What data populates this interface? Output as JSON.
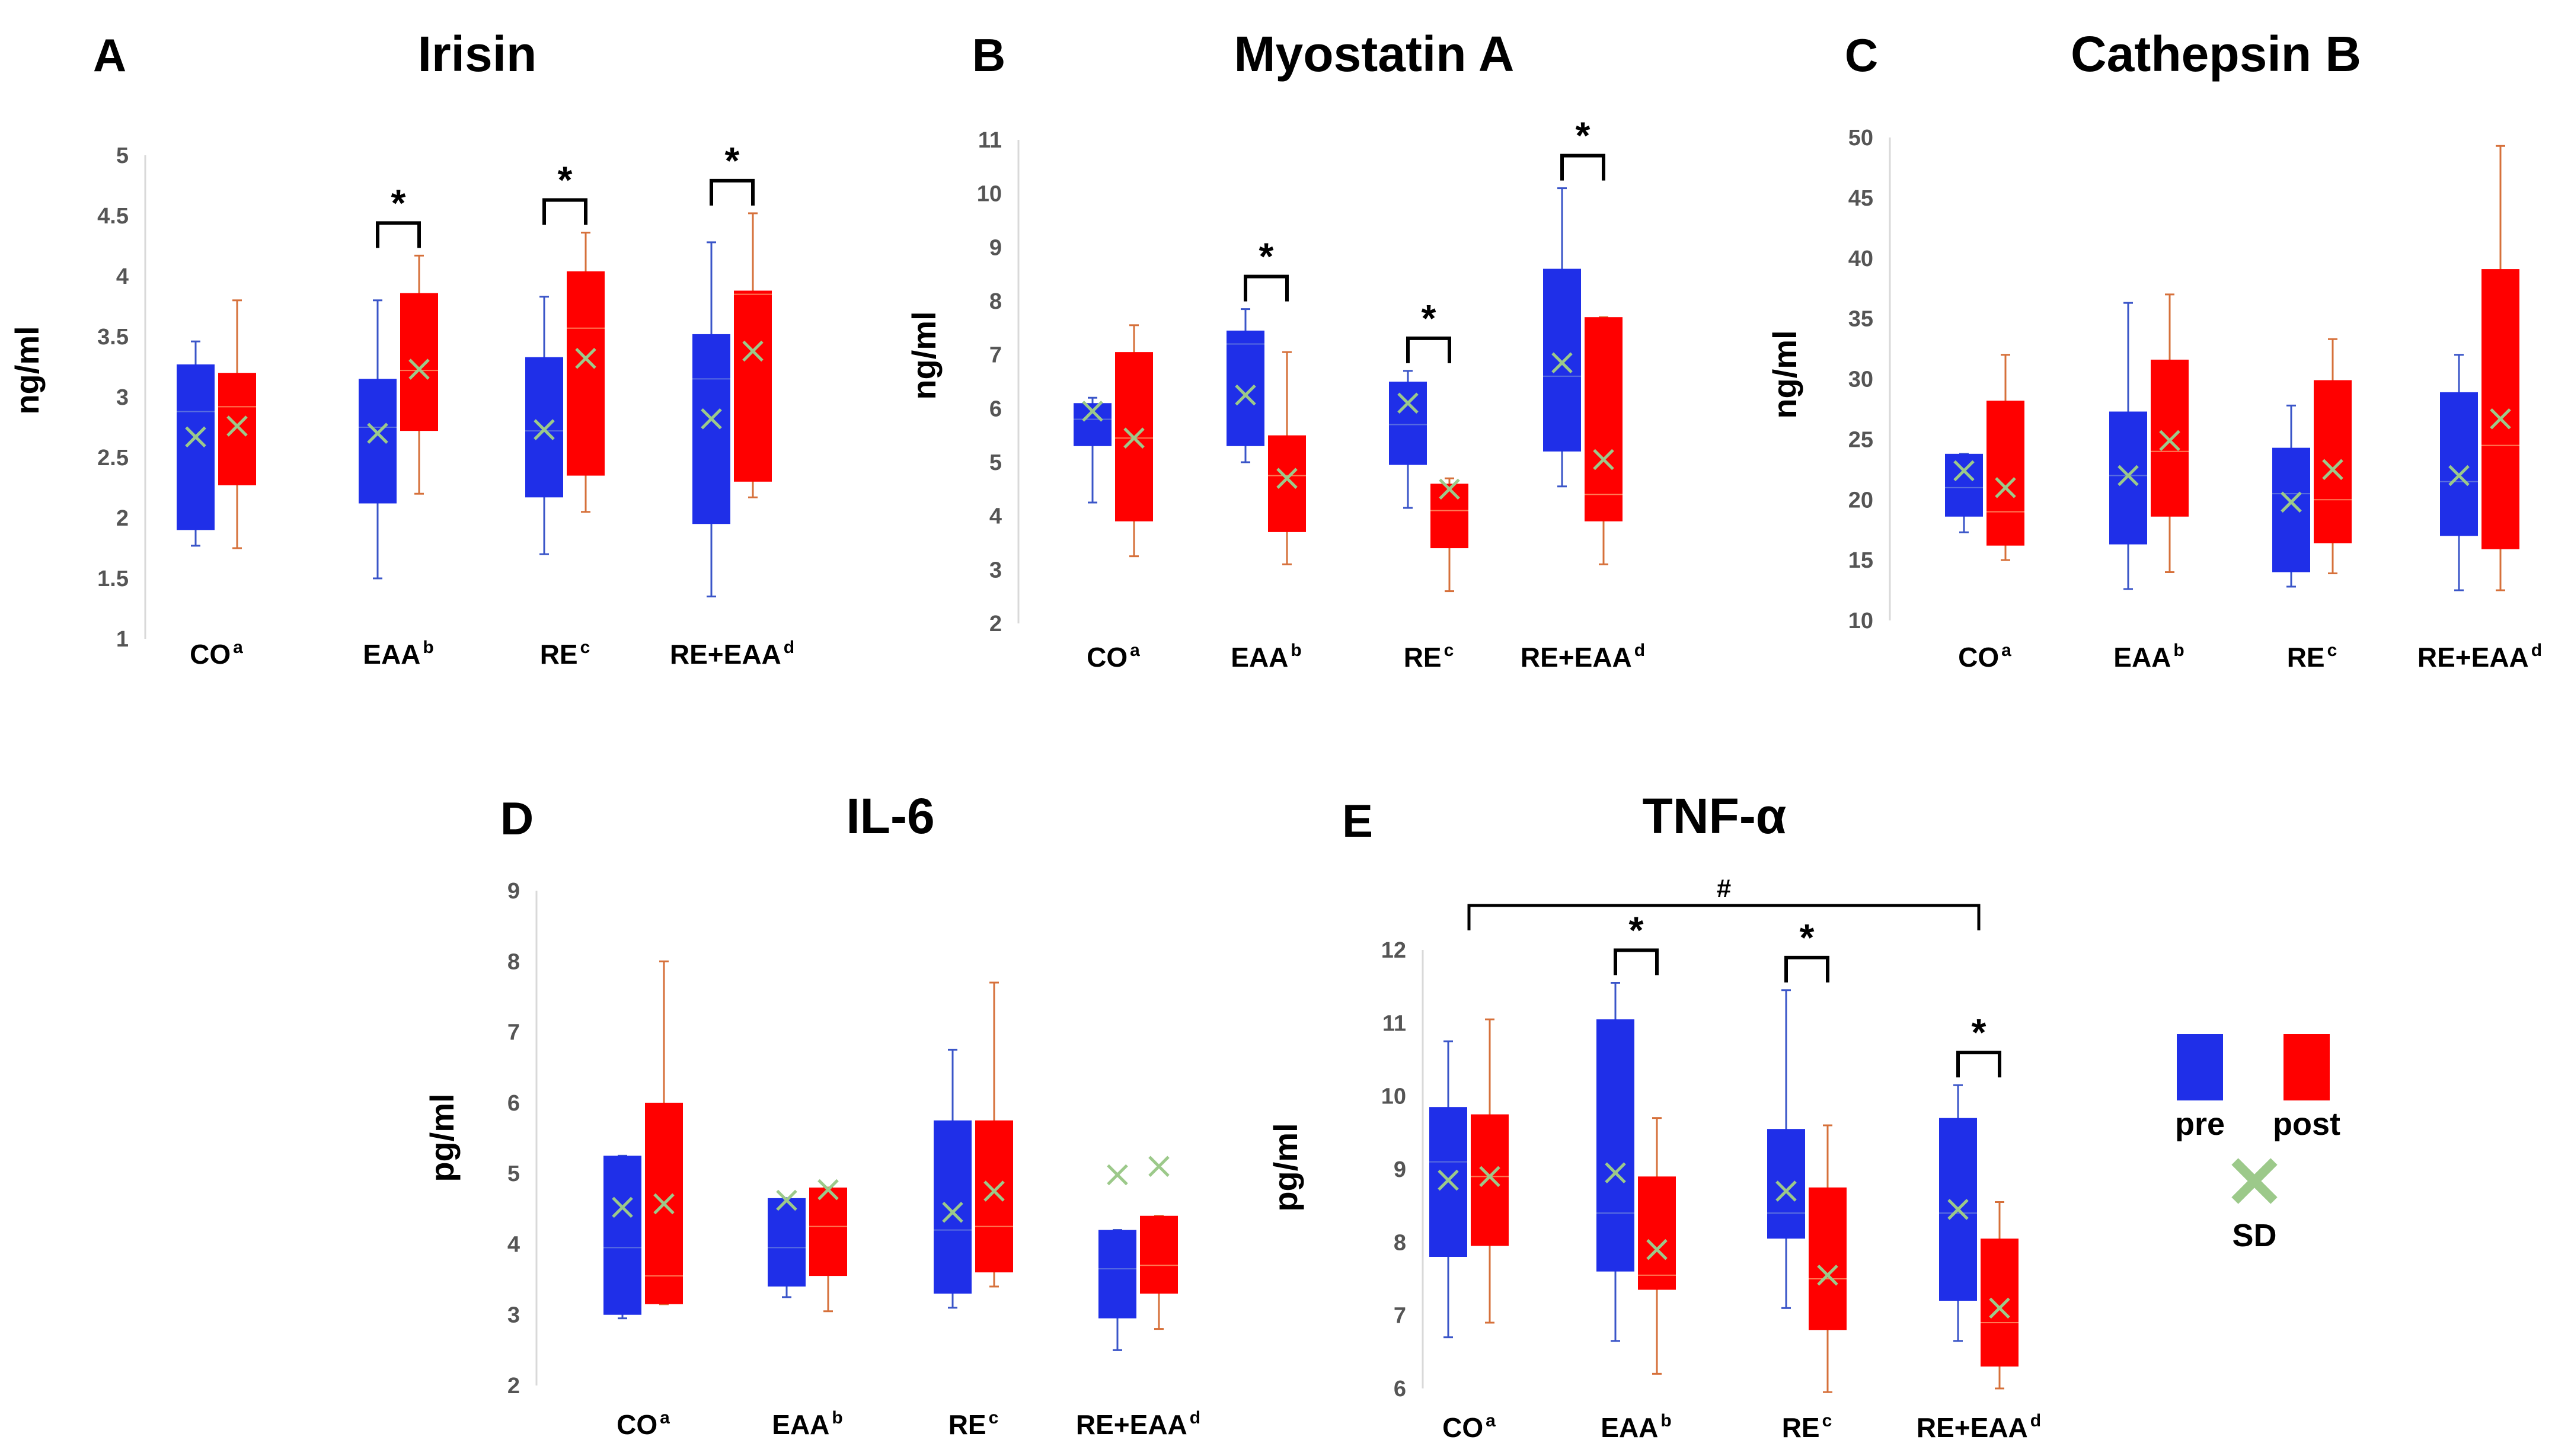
{
  "colors": {
    "pre": "#1f2fe8",
    "post": "#ff0000",
    "pre_whisker": "#3a55c8",
    "post_whisker": "#d6703a",
    "mean_marker": "#9cc98a",
    "axis": "#d9d9d9"
  },
  "legend": {
    "pre": "pre",
    "post": "post",
    "sd": "SD"
  },
  "chart_data": [
    {
      "id": "A",
      "type": "box",
      "panel_letter": "A",
      "title": "Irisin",
      "ylabel": "ng/ml",
      "ylim": [
        1,
        5
      ],
      "yticks": [
        "1",
        "1.5",
        "2",
        "2.5",
        "3",
        "3.5",
        "4",
        "4.5",
        "5"
      ],
      "categories": [
        {
          "name": "CO",
          "sup": "a"
        },
        {
          "name": "EAA",
          "sup": "b"
        },
        {
          "name": "RE",
          "sup": "c"
        },
        {
          "name": "RE+EAA",
          "sup": "d"
        }
      ],
      "series": [
        {
          "name": "pre",
          "boxes": [
            {
              "min": 1.77,
              "q1": 1.9,
              "median": 2.88,
              "q3": 3.27,
              "max": 3.46,
              "mean": 2.67
            },
            {
              "min": 1.5,
              "q1": 2.12,
              "median": 2.75,
              "q3": 3.15,
              "max": 3.8,
              "mean": 2.7
            },
            {
              "min": 1.7,
              "q1": 2.17,
              "median": 2.72,
              "q3": 3.33,
              "max": 3.83,
              "mean": 2.73
            },
            {
              "min": 1.35,
              "q1": 1.95,
              "median": 3.15,
              "q3": 3.52,
              "max": 4.28,
              "mean": 2.82
            }
          ]
        },
        {
          "name": "post",
          "boxes": [
            {
              "min": 1.75,
              "q1": 2.27,
              "median": 2.92,
              "q3": 3.2,
              "max": 3.8,
              "mean": 2.76
            },
            {
              "min": 2.2,
              "q1": 2.72,
              "median": 3.22,
              "q3": 3.86,
              "max": 4.17,
              "mean": 3.23
            },
            {
              "min": 2.05,
              "q1": 2.35,
              "median": 3.57,
              "q3": 4.04,
              "max": 4.36,
              "mean": 3.32
            },
            {
              "min": 2.17,
              "q1": 2.3,
              "median": 3.85,
              "q3": 3.88,
              "max": 4.52,
              "mean": 3.38
            }
          ]
        }
      ],
      "annotations": [
        {
          "category": 1,
          "label": "*"
        },
        {
          "category": 2,
          "label": "*"
        },
        {
          "category": 3,
          "label": "*"
        }
      ]
    },
    {
      "id": "B",
      "type": "box",
      "panel_letter": "B",
      "title": "Myostatin A",
      "ylabel": "ng/ml",
      "ylim": [
        2,
        11
      ],
      "yticks": [
        "2",
        "3",
        "4",
        "5",
        "6",
        "7",
        "8",
        "9",
        "10",
        "11"
      ],
      "categories": [
        {
          "name": "CO",
          "sup": "a"
        },
        {
          "name": "EAA",
          "sup": "b"
        },
        {
          "name": "RE",
          "sup": "c"
        },
        {
          "name": "RE+EAA",
          "sup": "d"
        }
      ],
      "series": [
        {
          "name": "pre",
          "boxes": [
            {
              "min": 4.25,
              "q1": 5.3,
              "median": 5.8,
              "q3": 6.1,
              "max": 6.2,
              "mean": 5.95
            },
            {
              "min": 5.0,
              "q1": 5.3,
              "median": 7.2,
              "q3": 7.45,
              "max": 7.85,
              "mean": 6.25
            },
            {
              "min": 4.15,
              "q1": 4.95,
              "median": 5.7,
              "q3": 6.5,
              "max": 6.7,
              "mean": 6.1
            },
            {
              "min": 4.55,
              "q1": 5.2,
              "median": 6.6,
              "q3": 8.6,
              "max": 10.1,
              "mean": 6.85
            }
          ]
        },
        {
          "name": "post",
          "boxes": [
            {
              "min": 3.25,
              "q1": 3.9,
              "median": 5.45,
              "q3": 7.05,
              "max": 7.55,
              "mean": 5.45
            },
            {
              "min": 3.1,
              "q1": 3.7,
              "median": 4.75,
              "q3": 5.5,
              "max": 7.05,
              "mean": 4.7
            },
            {
              "min": 2.6,
              "q1": 3.4,
              "median": 4.1,
              "q3": 4.6,
              "max": 4.7,
              "mean": 4.5
            },
            {
              "min": 3.1,
              "q1": 3.9,
              "median": 4.4,
              "q3": 7.7,
              "max": 7.7,
              "mean": 5.05
            }
          ]
        }
      ],
      "annotations": [
        {
          "category": 1,
          "label": "*"
        },
        {
          "category": 2,
          "label": "*"
        },
        {
          "category": 3,
          "label": "*"
        }
      ]
    },
    {
      "id": "C",
      "type": "box",
      "panel_letter": "C",
      "title": "Cathepsin B",
      "ylabel": "ng/ml",
      "ylim": [
        10,
        50
      ],
      "yticks": [
        "10",
        "15",
        "20",
        "25",
        "30",
        "35",
        "40",
        "45",
        "50"
      ],
      "categories": [
        {
          "name": "CO",
          "sup": "a"
        },
        {
          "name": "EAA",
          "sup": "b"
        },
        {
          "name": "RE",
          "sup": "c"
        },
        {
          "name": "RE+EAA",
          "sup": "d"
        }
      ],
      "series": [
        {
          "name": "pre",
          "boxes": [
            {
              "min": 17.3,
              "q1": 18.6,
              "median": 21.0,
              "q3": 23.8,
              "max": 23.8,
              "mean": 22.4
            },
            {
              "min": 12.6,
              "q1": 16.3,
              "median": 22.0,
              "q3": 27.3,
              "max": 36.3,
              "mean": 22.0
            },
            {
              "min": 12.8,
              "q1": 14.0,
              "median": 20.5,
              "q3": 24.3,
              "max": 27.8,
              "mean": 19.8
            },
            {
              "min": 12.5,
              "q1": 17.0,
              "median": 21.5,
              "q3": 28.9,
              "max": 32.0,
              "mean": 22.0
            }
          ]
        },
        {
          "name": "post",
          "boxes": [
            {
              "min": 15.0,
              "q1": 16.2,
              "median": 19.0,
              "q3": 28.2,
              "max": 32.0,
              "mean": 21.0
            },
            {
              "min": 14.0,
              "q1": 18.6,
              "median": 24.0,
              "q3": 31.6,
              "max": 37.0,
              "mean": 24.9
            },
            {
              "min": 13.9,
              "q1": 16.4,
              "median": 20.0,
              "q3": 29.9,
              "max": 33.3,
              "mean": 22.5
            },
            {
              "min": 12.5,
              "q1": 15.9,
              "median": 24.5,
              "q3": 39.1,
              "max": 49.3,
              "mean": 26.7
            }
          ]
        }
      ],
      "annotations": []
    },
    {
      "id": "D",
      "type": "box",
      "panel_letter": "D",
      "title": "IL-6",
      "ylabel": "pg/ml",
      "ylim": [
        2,
        9
      ],
      "yticks": [
        "2",
        "3",
        "4",
        "5",
        "6",
        "7",
        "8",
        "9"
      ],
      "categories": [
        {
          "name": "CO",
          "sup": "a"
        },
        {
          "name": "EAA",
          "sup": "b"
        },
        {
          "name": "RE",
          "sup": "c"
        },
        {
          "name": "RE+EAA",
          "sup": "d"
        }
      ],
      "series": [
        {
          "name": "pre",
          "boxes": [
            {
              "min": 2.95,
              "q1": 3.0,
              "median": 3.95,
              "q3": 5.25,
              "max": 5.25,
              "mean": 4.52
            },
            {
              "min": 3.25,
              "q1": 3.4,
              "median": 3.95,
              "q3": 4.65,
              "max": 4.65,
              "mean": 4.62
            },
            {
              "min": 3.1,
              "q1": 3.3,
              "median": 4.2,
              "q3": 5.75,
              "max": 6.75,
              "mean": 4.45
            },
            {
              "min": 2.5,
              "q1": 2.95,
              "median": 3.65,
              "q3": 4.2,
              "max": 4.2,
              "mean": 4.98
            }
          ]
        },
        {
          "name": "post",
          "boxes": [
            {
              "min": 3.15,
              "q1": 3.15,
              "median": 3.55,
              "q3": 6.0,
              "max": 8.0,
              "mean": 4.57
            },
            {
              "min": 3.05,
              "q1": 3.55,
              "median": 4.25,
              "q3": 4.8,
              "max": 4.8,
              "mean": 4.77
            },
            {
              "min": 3.4,
              "q1": 3.6,
              "median": 4.25,
              "q3": 5.75,
              "max": 7.7,
              "mean": 4.75
            },
            {
              "min": 2.8,
              "q1": 3.3,
              "median": 3.7,
              "q3": 4.4,
              "max": 4.4,
              "mean": 5.1
            }
          ]
        }
      ],
      "annotations": []
    },
    {
      "id": "E",
      "type": "box",
      "panel_letter": "E",
      "title": "TNF-α",
      "ylabel": "pg/ml",
      "ylim": [
        6,
        12
      ],
      "yticks": [
        "6",
        "7",
        "8",
        "9",
        "10",
        "11",
        "12"
      ],
      "categories": [
        {
          "name": "CO",
          "sup": "a"
        },
        {
          "name": "EAA",
          "sup": "b"
        },
        {
          "name": "RE",
          "sup": "c"
        },
        {
          "name": "RE+EAA",
          "sup": "d"
        }
      ],
      "series": [
        {
          "name": "pre",
          "boxes": [
            {
              "min": 6.7,
              "q1": 7.8,
              "median": 9.1,
              "q3": 9.85,
              "max": 10.75,
              "mean": 8.85
            },
            {
              "min": 6.65,
              "q1": 7.6,
              "median": 8.4,
              "q3": 11.05,
              "max": 11.55,
              "mean": 8.95
            },
            {
              "min": 7.1,
              "q1": 8.05,
              "median": 8.4,
              "q3": 9.55,
              "max": 11.45,
              "mean": 8.7
            },
            {
              "min": 6.65,
              "q1": 7.2,
              "median": 8.4,
              "q3": 9.7,
              "max": 10.15,
              "mean": 8.45
            }
          ]
        },
        {
          "name": "post",
          "boxes": [
            {
              "min": 6.9,
              "q1": 7.95,
              "median": 8.9,
              "q3": 9.75,
              "max": 11.05,
              "mean": 8.9
            },
            {
              "min": 6.2,
              "q1": 7.35,
              "median": 7.55,
              "q3": 8.9,
              "max": 9.7,
              "mean": 7.9
            },
            {
              "min": 5.95,
              "q1": 6.8,
              "median": 7.5,
              "q3": 8.75,
              "max": 9.6,
              "mean": 7.55
            },
            {
              "min": 6.0,
              "q1": 6.3,
              "median": 6.9,
              "q3": 8.05,
              "max": 8.55,
              "mean": 7.1
            }
          ]
        }
      ],
      "annotations": [
        {
          "category": 1,
          "label": "*"
        },
        {
          "category": 2,
          "label": "*"
        },
        {
          "category": 3,
          "label": "*"
        },
        {
          "from_category": 0,
          "to_category": 3,
          "label": "#"
        }
      ]
    }
  ]
}
